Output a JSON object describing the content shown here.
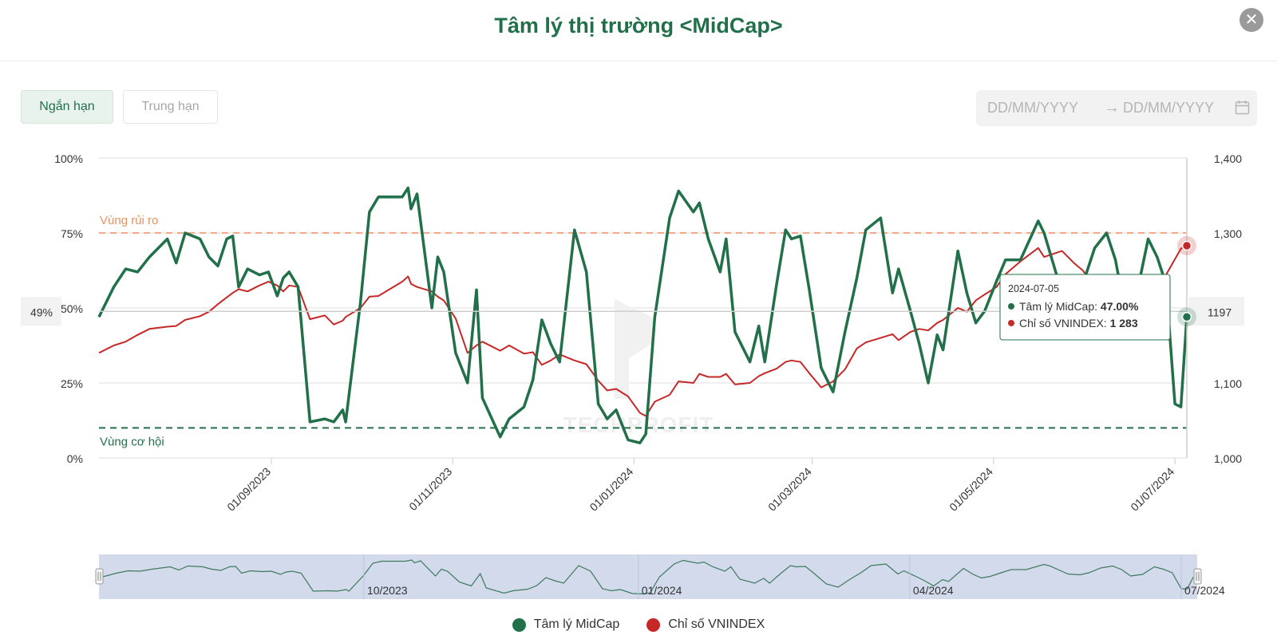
{
  "header": {
    "title": "Tâm lý thị trường <MidCap>",
    "close_label": "✕"
  },
  "tabs": [
    {
      "label": "Ngắn hạn",
      "active": true
    },
    {
      "label": "Trung hạn",
      "active": false
    }
  ],
  "date_range": {
    "start_placeholder": "DD/MM/YYYY",
    "arrow": "→",
    "end_placeholder": "DD/MM/YYYY"
  },
  "chart_data": {
    "type": "line",
    "x_start": "2023-07-05",
    "x_end": "2024-07-05",
    "x_ticks": [
      {
        "date": "2023-09-01",
        "label": "01/09/2023"
      },
      {
        "date": "2023-11-01",
        "label": "01/11/2023"
      },
      {
        "date": "2024-01-01",
        "label": "01/01/2024"
      },
      {
        "date": "2024-03-01",
        "label": "01/03/2024"
      },
      {
        "date": "2024-05-01",
        "label": "01/05/2024"
      },
      {
        "date": "2024-07-01",
        "label": "01/07/2024"
      }
    ],
    "y_left": {
      "ticks": [
        "0%",
        "25%",
        "50%",
        "75%",
        "100%"
      ],
      "range": [
        0,
        100
      ],
      "unit": "%"
    },
    "y_right": {
      "ticks": [
        "1,000",
        "1,100",
        "1,200",
        "1,300",
        "1,400"
      ],
      "range": [
        1000,
        1400
      ]
    },
    "zones": [
      {
        "label": "Vùng rủi ro",
        "value": 75,
        "color": "#f0a98b"
      },
      {
        "label": "Vùng cơ hội",
        "value": 10,
        "color": "#21704a"
      }
    ],
    "series": [
      {
        "name": "Tâm lý MidCap",
        "axis": "left",
        "color": "#21704a",
        "points": [
          [
            "2023-07-05",
            47
          ],
          [
            "2023-07-10",
            57
          ],
          [
            "2023-07-14",
            63
          ],
          [
            "2023-07-18",
            62
          ],
          [
            "2023-07-22",
            67
          ],
          [
            "2023-07-28",
            73
          ],
          [
            "2023-07-31",
            65
          ],
          [
            "2023-08-03",
            75
          ],
          [
            "2023-08-08",
            73
          ],
          [
            "2023-08-11",
            67
          ],
          [
            "2023-08-14",
            64
          ],
          [
            "2023-08-17",
            73
          ],
          [
            "2023-08-19",
            74
          ],
          [
            "2023-08-21",
            57
          ],
          [
            "2023-08-24",
            63
          ],
          [
            "2023-08-28",
            61
          ],
          [
            "2023-08-31",
            62
          ],
          [
            "2023-09-03",
            54
          ],
          [
            "2023-09-05",
            60
          ],
          [
            "2023-09-07",
            62
          ],
          [
            "2023-09-10",
            57
          ],
          [
            "2023-09-14",
            12
          ],
          [
            "2023-09-19",
            13
          ],
          [
            "2023-09-22",
            12
          ],
          [
            "2023-09-25",
            16
          ],
          [
            "2023-09-26",
            12
          ],
          [
            "2023-10-01",
            52
          ],
          [
            "2023-10-04",
            82
          ],
          [
            "2023-10-07",
            87
          ],
          [
            "2023-10-15",
            87
          ],
          [
            "2023-10-17",
            90
          ],
          [
            "2023-10-18",
            83
          ],
          [
            "2023-10-20",
            88
          ],
          [
            "2023-10-25",
            50
          ],
          [
            "2023-10-27",
            67
          ],
          [
            "2023-10-29",
            62
          ],
          [
            "2023-11-02",
            35
          ],
          [
            "2023-11-06",
            25
          ],
          [
            "2023-11-09",
            56
          ],
          [
            "2023-11-11",
            20
          ],
          [
            "2023-11-17",
            7
          ],
          [
            "2023-11-20",
            13
          ],
          [
            "2023-11-25",
            17
          ],
          [
            "2023-11-28",
            26
          ],
          [
            "2023-12-01",
            46
          ],
          [
            "2023-12-04",
            38
          ],
          [
            "2023-12-07",
            32
          ],
          [
            "2023-12-12",
            76
          ],
          [
            "2023-12-16",
            62
          ],
          [
            "2023-12-20",
            18
          ],
          [
            "2023-12-23",
            13
          ],
          [
            "2023-12-26",
            16
          ],
          [
            "2023-12-30",
            6
          ],
          [
            "2024-01-03",
            5
          ],
          [
            "2024-01-05",
            8
          ],
          [
            "2024-01-08",
            47
          ],
          [
            "2024-01-13",
            80
          ],
          [
            "2024-01-16",
            89
          ],
          [
            "2024-01-21",
            82
          ],
          [
            "2024-01-23",
            85
          ],
          [
            "2024-01-26",
            73
          ],
          [
            "2024-01-30",
            62
          ],
          [
            "2024-02-01",
            73
          ],
          [
            "2024-02-04",
            42
          ],
          [
            "2024-02-09",
            32
          ],
          [
            "2024-02-12",
            44
          ],
          [
            "2024-02-14",
            32
          ],
          [
            "2024-02-18",
            58
          ],
          [
            "2024-02-21",
            76
          ],
          [
            "2024-02-23",
            73
          ],
          [
            "2024-02-26",
            74
          ],
          [
            "2024-02-29",
            56
          ],
          [
            "2024-03-04",
            30
          ],
          [
            "2024-03-08",
            22
          ],
          [
            "2024-03-12",
            42
          ],
          [
            "2024-03-16",
            60
          ],
          [
            "2024-03-19",
            76
          ],
          [
            "2024-03-24",
            80
          ],
          [
            "2024-03-28",
            55
          ],
          [
            "2024-03-30",
            63
          ],
          [
            "2024-04-03",
            49
          ],
          [
            "2024-04-06",
            38
          ],
          [
            "2024-04-09",
            25
          ],
          [
            "2024-04-12",
            41
          ],
          [
            "2024-04-14",
            36
          ],
          [
            "2024-04-19",
            69
          ],
          [
            "2024-04-22",
            55
          ],
          [
            "2024-04-25",
            45
          ],
          [
            "2024-04-28",
            49
          ],
          [
            "2024-05-02",
            59
          ],
          [
            "2024-05-05",
            66
          ],
          [
            "2024-05-10",
            66
          ],
          [
            "2024-05-16",
            79
          ],
          [
            "2024-05-18",
            75
          ],
          [
            "2024-05-21",
            65
          ],
          [
            "2024-05-24",
            55
          ],
          [
            "2024-05-28",
            53
          ],
          [
            "2024-05-31",
            58
          ],
          [
            "2024-06-04",
            70
          ],
          [
            "2024-06-08",
            75
          ],
          [
            "2024-06-11",
            66
          ],
          [
            "2024-06-14",
            50
          ],
          [
            "2024-06-18",
            54
          ],
          [
            "2024-06-22",
            73
          ],
          [
            "2024-06-25",
            67
          ],
          [
            "2024-06-28",
            58
          ],
          [
            "2024-07-01",
            18
          ],
          [
            "2024-07-03",
            17
          ],
          [
            "2024-07-05",
            47
          ]
        ]
      },
      {
        "name": "Chỉ số VNINDEX",
        "axis": "right",
        "color": "#c62828",
        "points": [
          [
            "2023-07-05",
            1140
          ],
          [
            "2023-07-10",
            1150
          ],
          [
            "2023-07-14",
            1155
          ],
          [
            "2023-07-18",
            1164
          ],
          [
            "2023-07-22",
            1172
          ],
          [
            "2023-07-28",
            1175
          ],
          [
            "2023-07-31",
            1176
          ],
          [
            "2023-08-03",
            1184
          ],
          [
            "2023-08-08",
            1189
          ],
          [
            "2023-08-11",
            1195
          ],
          [
            "2023-08-14",
            1205
          ],
          [
            "2023-08-17",
            1214
          ],
          [
            "2023-08-19",
            1220
          ],
          [
            "2023-08-21",
            1225
          ],
          [
            "2023-08-24",
            1222
          ],
          [
            "2023-08-28",
            1230
          ],
          [
            "2023-08-31",
            1235
          ],
          [
            "2023-09-03",
            1230
          ],
          [
            "2023-09-05",
            1222
          ],
          [
            "2023-09-07",
            1230
          ],
          [
            "2023-09-10",
            1228
          ],
          [
            "2023-09-14",
            1185
          ],
          [
            "2023-09-19",
            1190
          ],
          [
            "2023-09-22",
            1178
          ],
          [
            "2023-09-25",
            1183
          ],
          [
            "2023-09-26",
            1188
          ],
          [
            "2023-10-01",
            1200
          ],
          [
            "2023-10-04",
            1215
          ],
          [
            "2023-10-07",
            1216
          ],
          [
            "2023-10-15",
            1235
          ],
          [
            "2023-10-17",
            1242
          ],
          [
            "2023-10-18",
            1232
          ],
          [
            "2023-10-20",
            1228
          ],
          [
            "2023-10-25",
            1222
          ],
          [
            "2023-10-27",
            1215
          ],
          [
            "2023-10-29",
            1210
          ],
          [
            "2023-11-02",
            1186
          ],
          [
            "2023-11-06",
            1140
          ],
          [
            "2023-11-09",
            1150
          ],
          [
            "2023-11-11",
            1155
          ],
          [
            "2023-11-17",
            1143
          ],
          [
            "2023-11-20",
            1150
          ],
          [
            "2023-11-25",
            1139
          ],
          [
            "2023-11-28",
            1141
          ],
          [
            "2023-12-01",
            1124
          ],
          [
            "2023-12-04",
            1130
          ],
          [
            "2023-12-07",
            1138
          ],
          [
            "2023-12-12",
            1130
          ],
          [
            "2023-12-16",
            1125
          ],
          [
            "2023-12-20",
            1103
          ],
          [
            "2023-12-23",
            1090
          ],
          [
            "2023-12-26",
            1092
          ],
          [
            "2023-12-30",
            1082
          ],
          [
            "2024-01-03",
            1060
          ],
          [
            "2024-01-05",
            1056
          ],
          [
            "2024-01-08",
            1075
          ],
          [
            "2024-01-13",
            1084
          ],
          [
            "2024-01-16",
            1102
          ],
          [
            "2024-01-21",
            1100
          ],
          [
            "2024-01-23",
            1112
          ],
          [
            "2024-01-26",
            1108
          ],
          [
            "2024-01-30",
            1108
          ],
          [
            "2024-02-01",
            1112
          ],
          [
            "2024-02-04",
            1098
          ],
          [
            "2024-02-09",
            1100
          ],
          [
            "2024-02-12",
            1109
          ],
          [
            "2024-02-14",
            1113
          ],
          [
            "2024-02-18",
            1119
          ],
          [
            "2024-02-21",
            1128
          ],
          [
            "2024-02-23",
            1130
          ],
          [
            "2024-02-26",
            1128
          ],
          [
            "2024-02-29",
            1113
          ],
          [
            "2024-03-04",
            1094
          ],
          [
            "2024-03-08",
            1102
          ],
          [
            "2024-03-12",
            1118
          ],
          [
            "2024-03-16",
            1146
          ],
          [
            "2024-03-19",
            1154
          ],
          [
            "2024-03-24",
            1160
          ],
          [
            "2024-03-28",
            1165
          ],
          [
            "2024-03-30",
            1157
          ],
          [
            "2024-04-03",
            1168
          ],
          [
            "2024-04-06",
            1172
          ],
          [
            "2024-04-09",
            1170
          ],
          [
            "2024-04-12",
            1180
          ],
          [
            "2024-04-14",
            1184
          ],
          [
            "2024-04-19",
            1200
          ],
          [
            "2024-04-22",
            1195
          ],
          [
            "2024-04-25",
            1210
          ],
          [
            "2024-04-28",
            1218
          ],
          [
            "2024-05-02",
            1228
          ],
          [
            "2024-05-05",
            1245
          ],
          [
            "2024-05-10",
            1262
          ],
          [
            "2024-05-16",
            1280
          ],
          [
            "2024-05-18",
            1268
          ],
          [
            "2024-05-21",
            1272
          ],
          [
            "2024-05-24",
            1276
          ],
          [
            "2024-05-28",
            1260
          ],
          [
            "2024-05-31",
            1250
          ],
          [
            "2024-06-04",
            1228
          ],
          [
            "2024-06-08",
            1192
          ],
          [
            "2024-06-11",
            1196
          ],
          [
            "2024-06-14",
            1200
          ],
          [
            "2024-06-18",
            1203
          ],
          [
            "2024-06-22",
            1210
          ],
          [
            "2024-06-25",
            1239
          ],
          [
            "2024-06-28",
            1244
          ],
          [
            "2024-07-01",
            1265
          ],
          [
            "2024-07-03",
            1279
          ],
          [
            "2024-07-05",
            1283
          ]
        ]
      }
    ],
    "crosshair": {
      "left_label": "49%",
      "right_label": "1197"
    },
    "tooltip": {
      "date": "2024-07-05",
      "rows": [
        {
          "label": "Tâm lý MidCap:",
          "value": "47.00%",
          "color": "#21704a"
        },
        {
          "label": "Chỉ số VNINDEX:",
          "value": "1 283",
          "color": "#c62828"
        }
      ]
    },
    "navigator": {
      "labels": [
        "10/2023",
        "01/2024",
        "04/2024",
        "07/2024"
      ]
    },
    "watermark": "TECHPROFIT",
    "legend_position": "bottom"
  }
}
